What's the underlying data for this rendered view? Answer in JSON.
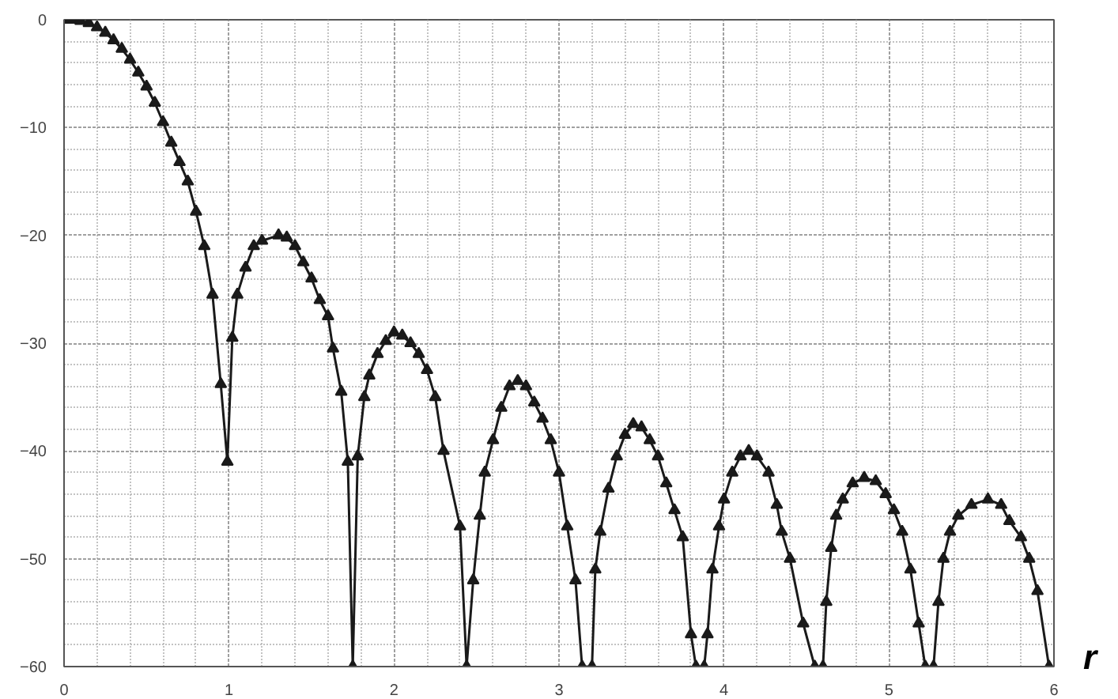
{
  "chart_data": {
    "type": "line",
    "xlabel": "r",
    "marker": "triangle",
    "line_style": "solid",
    "grid": true,
    "xlim": [
      0,
      6
    ],
    "ylim": [
      -60,
      0
    ],
    "xticks": [
      0,
      1,
      2,
      3,
      4,
      5,
      6
    ],
    "yticks": [
      {
        "value": -60,
        "label": "−60"
      },
      {
        "value": -50,
        "label": "−50"
      },
      {
        "value": -40,
        "label": "−40"
      },
      {
        "value": -30,
        "label": "−30"
      },
      {
        "value": -20,
        "label": "−20"
      },
      {
        "value": -10,
        "label": "−10"
      },
      0
    ],
    "series": [
      {
        "color": "#1a1a1a",
        "x": [
          0,
          0.05,
          0.1,
          0.15,
          0.2,
          0.25,
          0.3,
          0.35,
          0.4,
          0.45,
          0.5,
          0.55,
          0.6,
          0.65,
          0.7,
          0.75,
          0.8,
          0.85,
          0.9,
          0.95,
          0.99,
          1.02,
          1.05,
          1.1,
          1.15,
          1.2,
          1.3,
          1.35,
          1.4,
          1.45,
          1.5,
          1.55,
          1.6,
          1.63,
          1.68,
          1.72,
          1.75,
          1.78,
          1.82,
          1.85,
          1.9,
          1.95,
          2.0,
          2.05,
          2.1,
          2.15,
          2.2,
          2.25,
          2.3,
          2.4,
          2.44,
          2.48,
          2.52,
          2.55,
          2.6,
          2.65,
          2.7,
          2.75,
          2.8,
          2.85,
          2.9,
          2.95,
          3.0,
          3.05,
          3.1,
          3.14,
          3.2,
          3.22,
          3.25,
          3.3,
          3.35,
          3.4,
          3.45,
          3.5,
          3.55,
          3.6,
          3.65,
          3.7,
          3.75,
          3.8,
          3.83,
          3.88,
          3.9,
          3.93,
          3.97,
          4.0,
          4.05,
          4.1,
          4.15,
          4.2,
          4.27,
          4.32,
          4.35,
          4.4,
          4.48,
          4.55,
          4.6,
          4.62,
          4.65,
          4.68,
          4.72,
          4.78,
          4.85,
          4.92,
          4.98,
          5.03,
          5.08,
          5.13,
          5.18,
          5.22,
          5.27,
          5.3,
          5.33,
          5.37,
          5.42,
          5.5,
          5.6,
          5.68,
          5.73,
          5.8,
          5.85,
          5.9,
          5.97
        ],
        "values": [
          0,
          0,
          -0.1,
          -0.3,
          -0.7,
          -1.2,
          -1.9,
          -2.7,
          -3.7,
          -4.9,
          -6.2,
          -7.7,
          -9.5,
          -11.4,
          -13.2,
          -15,
          -17.8,
          -21,
          -25.5,
          -33.8,
          -41,
          -29.5,
          -25.5,
          -23,
          -21,
          -20.5,
          -20,
          -20.2,
          -21,
          -22.5,
          -24,
          -26,
          -27.5,
          -30.5,
          -34.5,
          -41,
          -60,
          -40.5,
          -35,
          -33,
          -31,
          -29.8,
          -29,
          -29.3,
          -30,
          -31,
          -32.5,
          -35,
          -40,
          -47,
          -60,
          -52,
          -46,
          -42,
          -39,
          -36,
          -34,
          -33.5,
          -34,
          -35.5,
          -37,
          -39,
          -42,
          -47,
          -52,
          -60,
          -60,
          -51,
          -47.5,
          -43.5,
          -40.5,
          -38.5,
          -37.5,
          -37.8,
          -39,
          -40.5,
          -43,
          -45.5,
          -48,
          -57,
          -60,
          -60,
          -57,
          -51,
          -47,
          -44.5,
          -42,
          -40.5,
          -40,
          -40.5,
          -42,
          -45,
          -47.5,
          -50,
          -56,
          -60,
          -60,
          -54,
          -49,
          -46,
          -44.5,
          -43,
          -42.5,
          -42.8,
          -44,
          -45.5,
          -47.5,
          -51,
          -56,
          -60,
          -60,
          -54,
          -50,
          -47.5,
          -46,
          -45,
          -44.5,
          -45,
          -46.5,
          -48,
          -50,
          -53,
          -60
        ]
      }
    ]
  }
}
